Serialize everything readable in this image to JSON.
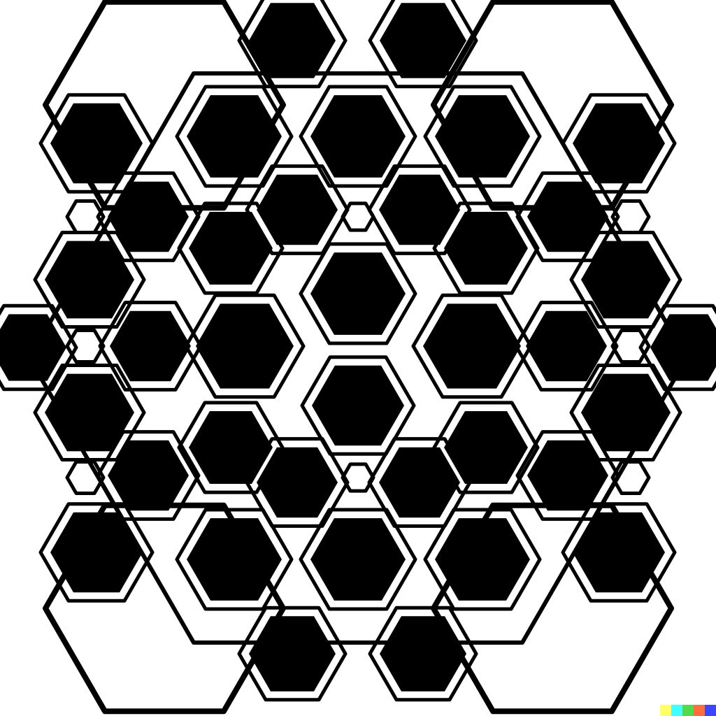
{
  "artwork": {
    "subject": "honeycomb-hexagon-pattern",
    "colors": {
      "background": "#ffffff",
      "fill": "#000000",
      "outline": "#000000"
    }
  },
  "watermark": {
    "colors": [
      "#ffff66",
      "#42ffff",
      "#51da4c",
      "#ff6e3c",
      "#3c46ff"
    ]
  }
}
